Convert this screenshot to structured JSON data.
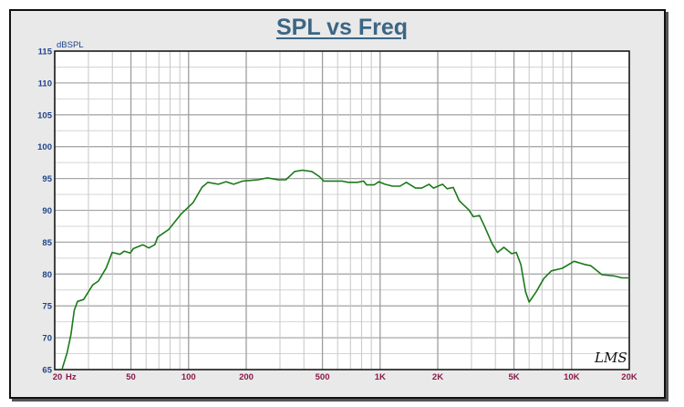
{
  "chart_data": {
    "type": "line",
    "title": "SPL vs Freq",
    "xlabel": "Hz",
    "ylabel": "dBSPL",
    "xscale": "log",
    "xlim": [
      20,
      20000
    ],
    "ylim": [
      65,
      115
    ],
    "grid": true,
    "y_ticks": [
      65,
      70,
      75,
      80,
      85,
      90,
      95,
      100,
      105,
      110,
      115
    ],
    "x_ticks": [
      {
        "value": 20,
        "label": "20"
      },
      {
        "value": 50,
        "label": "50"
      },
      {
        "value": 100,
        "label": "100"
      },
      {
        "value": 200,
        "label": "200"
      },
      {
        "value": 500,
        "label": "500"
      },
      {
        "value": 1000,
        "label": "1K"
      },
      {
        "value": 2000,
        "label": "2K"
      },
      {
        "value": 5000,
        "label": "5K"
      },
      {
        "value": 10000,
        "label": "10K"
      },
      {
        "value": 20000,
        "label": "20K"
      }
    ],
    "watermark": "LMS",
    "series": [
      {
        "name": "SPL",
        "color": "#1a7a1a",
        "x": [
          21.8,
          23.2,
          24.3,
          25.3,
          26.3,
          28.3,
          31.6,
          33.8,
          37.2,
          39.9,
          43.8,
          46.1,
          49.6,
          51.5,
          57.6,
          62,
          66.6,
          69,
          78.8,
          91.2,
          105.5,
          117.4,
          126,
          143,
          157,
          172,
          192,
          231,
          258,
          293,
          322,
          358,
          393,
          440,
          482,
          508,
          631,
          682,
          762,
          820,
          850,
          930,
          984,
          1060,
          1160,
          1270,
          1370,
          1530,
          1650,
          1800,
          1900,
          2120,
          2240,
          2410,
          2590,
          2740,
          2900,
          3070,
          3300,
          3500,
          3840,
          4100,
          4430,
          4860,
          5140,
          5430,
          5750,
          6000,
          6530,
          7160,
          7840,
          8930,
          10300,
          11700,
          12600,
          14400,
          16700,
          18300,
          20000
        ],
        "y": [
          65,
          67.6,
          70.5,
          74.3,
          75.7,
          76,
          78.3,
          78.9,
          81,
          83.4,
          83.1,
          83.6,
          83.3,
          84,
          84.6,
          84.1,
          84.6,
          85.8,
          87,
          89.4,
          91.2,
          93.6,
          94.4,
          94.1,
          94.5,
          94.1,
          94.6,
          94.8,
          95.1,
          94.8,
          94.8,
          96.1,
          96.3,
          96.1,
          95.3,
          94.6,
          94.6,
          94.4,
          94.4,
          94.6,
          94,
          94,
          94.5,
          94.1,
          93.8,
          93.8,
          94.4,
          93.5,
          93.5,
          94.1,
          93.5,
          94.1,
          93.4,
          93.6,
          91.5,
          90.8,
          90.1,
          89,
          89.2,
          87.6,
          84.8,
          83.4,
          84.2,
          83.2,
          83.4,
          81.5,
          77.2,
          75.6,
          77.2,
          79.3,
          80.5,
          80.9,
          82,
          81.5,
          81.3,
          79.9,
          79.7,
          79.4,
          79.4
        ]
      }
    ]
  }
}
